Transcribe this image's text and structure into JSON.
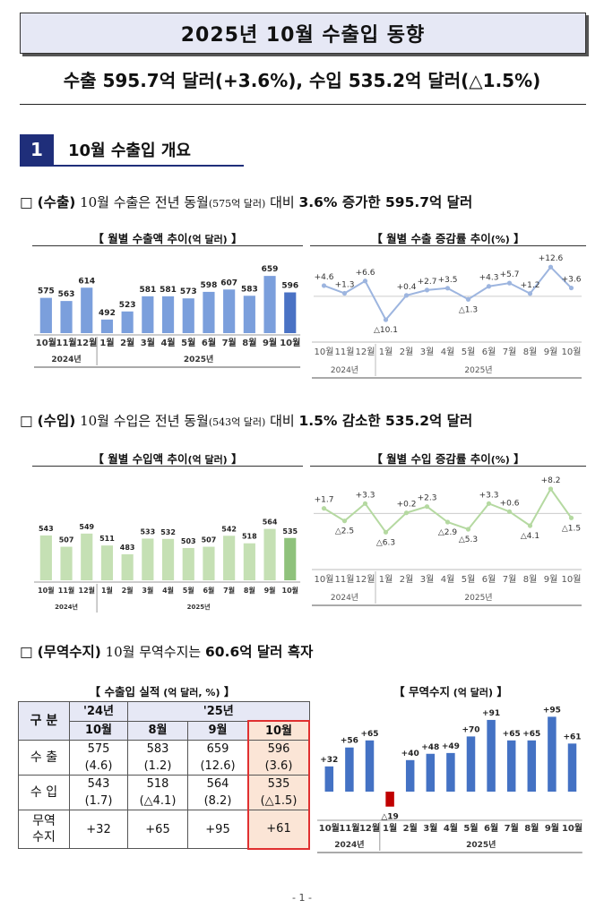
{
  "title": "2025년 10월 수출입 동향",
  "headline": "수출 595.7억 달러(+3.6%), 수입 535.2억 달러(△1.5%)",
  "section": {
    "number": "1",
    "title": "10월 수출입 개요"
  },
  "checkbox": "□",
  "export_para": {
    "label": "(수출)",
    "text1": " 10월 수출은 전년 동월",
    "paren": "(575억 달러)",
    "text2": " 대비 ",
    "bold": "3.6% 증가한 595.7억 달러"
  },
  "import_para": {
    "label": "(수입)",
    "text1": " 10월 수입은 전년 동월",
    "paren": "(543억 달러)",
    "text2": " 대비 ",
    "bold": "1.5% 감소한 535.2억 달러"
  },
  "balance_para": {
    "label": "(무역수지)",
    "text1": " 10월 무역수지는 ",
    "bold": "60.6억 달러 흑자"
  },
  "chart_titles": {
    "export_amount": {
      "main": "【 월별 수출액 추이",
      "unit": "(억 달러)",
      "end": " 】"
    },
    "export_rate": {
      "main": "【 월별 수출 증감률 추이",
      "unit": "(%)",
      "end": " 】"
    },
    "import_amount": {
      "main": "【 월별 수입액 추이",
      "unit": "(억 달러)",
      "end": " 】"
    },
    "import_rate": {
      "main": "【 월별 수입 증감률 추이",
      "unit": "(%)",
      "end": " 】"
    },
    "results": {
      "main": "【 수출입 실적",
      "unit": " (억 달러, %)",
      "end": " 】"
    },
    "balance": {
      "main": "【 무역수지",
      "unit": " (억 달러)",
      "end": " 】"
    }
  },
  "chart_data": [
    {
      "type": "bar",
      "id": "export_amount",
      "categories": [
        "10월",
        "11월",
        "12월",
        "1월",
        "2월",
        "3월",
        "4월",
        "5월",
        "6월",
        "7월",
        "8월",
        "9월",
        "10월"
      ],
      "year_groups": [
        {
          "label": "2024년",
          "count": 3
        },
        {
          "label": "2025년",
          "count": 10
        }
      ],
      "values": [
        575,
        563,
        614,
        492,
        523,
        581,
        581,
        573,
        598,
        607,
        583,
        659,
        596
      ],
      "labels": [
        "575",
        "563",
        "614",
        "492",
        "523",
        "581",
        "581",
        "573",
        "598",
        "607",
        "583",
        "659",
        "596"
      ],
      "ylim": [
        440,
        680
      ],
      "color": "#7b9fdc",
      "highlight": "#4a72c4"
    },
    {
      "type": "line",
      "id": "export_rate",
      "categories": [
        "10월",
        "11월",
        "12월",
        "1월",
        "2월",
        "3월",
        "4월",
        "5월",
        "6월",
        "7월",
        "8월",
        "9월",
        "10월"
      ],
      "year_groups": [
        {
          "label": "2024년",
          "count": 3
        },
        {
          "label": "2025년",
          "count": 10
        }
      ],
      "values": [
        4.6,
        1.3,
        6.6,
        -10.1,
        0.4,
        2.7,
        3.5,
        -1.3,
        4.3,
        5.7,
        1.2,
        12.6,
        3.6
      ],
      "labels": [
        "+4.6",
        "+1.3",
        "+6.6",
        "△10.1",
        "+0.4",
        "+2.7",
        "+3.5",
        "△1.3",
        "+4.3",
        "+5.7",
        "+1.2",
        "+12.6",
        "+3.6"
      ],
      "ylim": [
        -12,
        15
      ],
      "color": "#9db5df"
    },
    {
      "type": "bar",
      "id": "import_amount",
      "categories": [
        "10월",
        "11월",
        "12월",
        "1월",
        "2월",
        "3월",
        "4월",
        "5월",
        "6월",
        "7월",
        "8월",
        "9월",
        "10월"
      ],
      "year_groups": [
        {
          "label": "2024년",
          "count": 3
        },
        {
          "label": "2025년",
          "count": 10
        }
      ],
      "values": [
        543,
        507,
        549,
        511,
        483,
        533,
        532,
        503,
        507,
        542,
        518,
        564,
        535
      ],
      "labels": [
        "543",
        "507",
        "549",
        "511",
        "483",
        "533",
        "532",
        "503",
        "507",
        "542",
        "518",
        "564",
        "535"
      ],
      "ylim": [
        400,
        600
      ],
      "color": "#c5e0b4",
      "highlight": "#8fc27c"
    },
    {
      "type": "line",
      "id": "import_rate",
      "categories": [
        "10월",
        "11월",
        "12월",
        "1월",
        "2월",
        "3월",
        "4월",
        "5월",
        "6월",
        "7월",
        "8월",
        "9월",
        "10월"
      ],
      "year_groups": [
        {
          "label": "2024년",
          "count": 3
        },
        {
          "label": "2025년",
          "count": 10
        }
      ],
      "values": [
        1.7,
        -2.5,
        3.3,
        -6.3,
        0.2,
        2.3,
        -2.9,
        -5.3,
        3.3,
        0.6,
        -4.1,
        8.2,
        -1.5
      ],
      "labels": [
        "+1.7",
        "△2.5",
        "+3.3",
        "△6.3",
        "+0.2",
        "+2.3",
        "△2.9",
        "△5.3",
        "+3.3",
        "+0.6",
        "△4.1",
        "+8.2",
        "△1.5"
      ],
      "ylim": [
        -8,
        10
      ],
      "color": "#b5d9a1"
    },
    {
      "type": "bar",
      "id": "balance",
      "categories": [
        "10월",
        "11월",
        "12월",
        "1월",
        "2월",
        "3월",
        "4월",
        "5월",
        "6월",
        "7월",
        "8월",
        "9월",
        "10월"
      ],
      "year_groups": [
        {
          "label": "2024년",
          "count": 3
        },
        {
          "label": "2025년",
          "count": 10
        }
      ],
      "values": [
        32,
        56,
        65,
        -19,
        40,
        48,
        49,
        70,
        91,
        65,
        65,
        95,
        61
      ],
      "labels": [
        "+32",
        "+56",
        "+65",
        "△19",
        "+40",
        "+48",
        "+49",
        "+70",
        "+91",
        "+65",
        "+65",
        "+95",
        "+61"
      ],
      "ylim": [
        -25,
        100
      ],
      "color": "#4472c4",
      "negative_color": "#c00000"
    },
    {
      "type": "table",
      "id": "results",
      "header_left": "구 분",
      "years": [
        {
          "label": "'24년",
          "span": 1
        },
        {
          "label": "'25년",
          "span": 3
        }
      ],
      "months": [
        "10월",
        "8월",
        "9월",
        "10월"
      ],
      "rows": [
        {
          "label": "수 출",
          "values": [
            "575",
            "583",
            "659",
            "596"
          ],
          "rates": [
            "(4.6)",
            "(1.2)",
            "(12.6)",
            "(3.6)"
          ]
        },
        {
          "label": "수 입",
          "values": [
            "543",
            "518",
            "564",
            "535"
          ],
          "rates": [
            "(1.7)",
            "(△4.1)",
            "(8.2)",
            "(△1.5)"
          ]
        },
        {
          "label": "무역\n수지",
          "values": [
            "+32",
            "+65",
            "+95",
            "+61"
          ]
        }
      ]
    }
  ],
  "page_number": "- 1 -"
}
